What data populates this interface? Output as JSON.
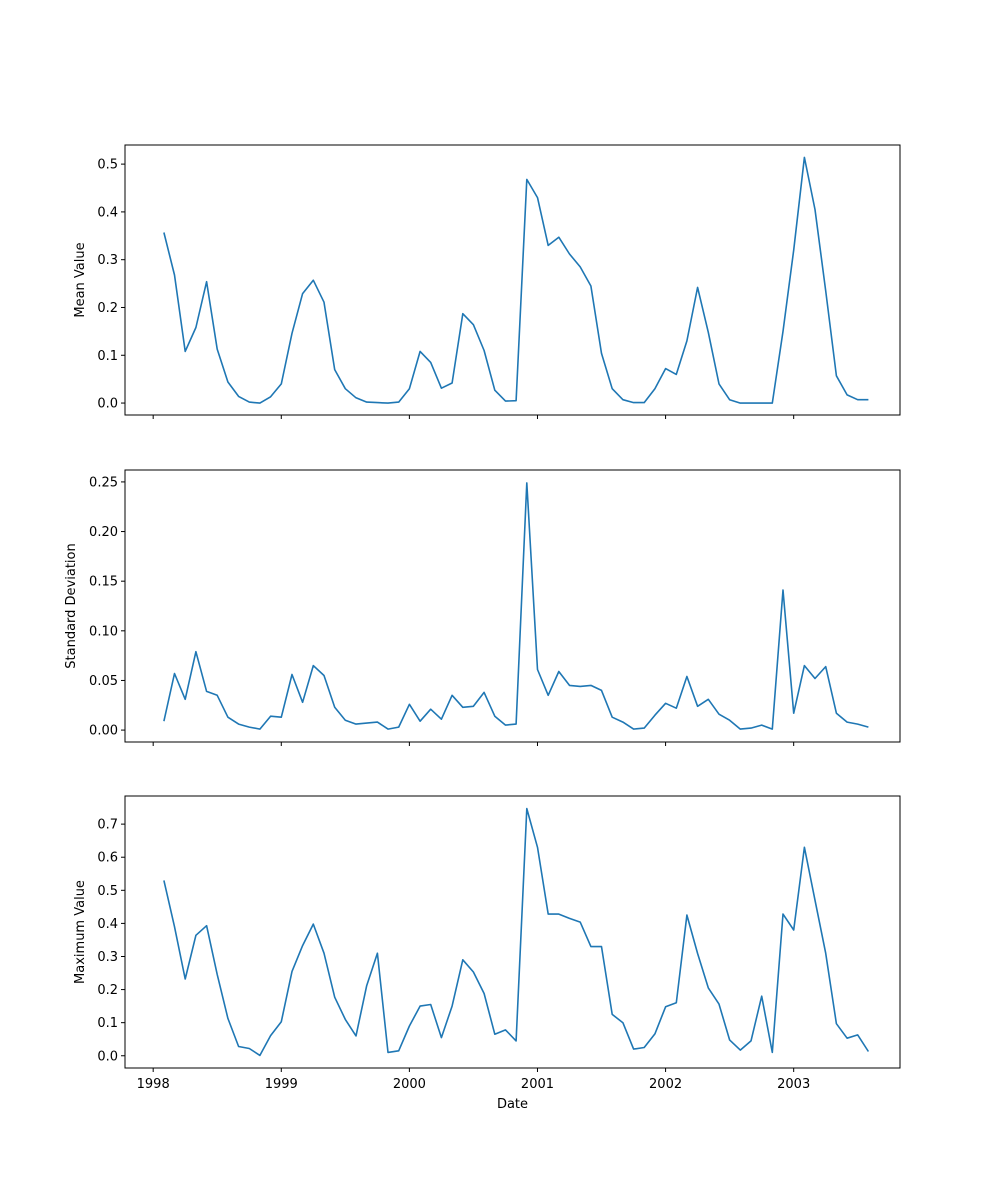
{
  "chart_data": {
    "type": "line",
    "xlabel": "Date",
    "x_ticks": [
      "1998",
      "1999",
      "2000",
      "2001",
      "2002",
      "2003"
    ],
    "line_color": "#1f77b4",
    "dates": [
      "1998-02",
      "1998-03",
      "1998-04",
      "1998-05",
      "1998-06",
      "1998-07",
      "1998-08",
      "1998-09",
      "1998-10",
      "1998-11",
      "1998-12",
      "1999-01",
      "1999-02",
      "1999-03",
      "1999-04",
      "1999-05",
      "1999-06",
      "1999-07",
      "1999-08",
      "1999-09",
      "1999-10",
      "1999-11",
      "1999-12",
      "2000-01",
      "2000-02",
      "2000-03",
      "2000-04",
      "2000-05",
      "2000-06",
      "2000-07",
      "2000-08",
      "2000-09",
      "2000-10",
      "2000-11",
      "2000-12",
      "2001-01",
      "2001-02",
      "2001-03",
      "2001-04",
      "2001-05",
      "2001-06",
      "2001-07",
      "2001-08",
      "2001-09",
      "2001-10",
      "2001-11",
      "2001-12",
      "2002-01",
      "2002-02",
      "2002-03",
      "2002-04",
      "2002-05",
      "2002-06",
      "2002-07",
      "2002-08",
      "2002-09",
      "2002-10",
      "2002-11",
      "2002-12",
      "2003-01",
      "2003-02",
      "2003-03",
      "2003-04",
      "2003-05",
      "2003-06",
      "2003-07",
      "2003-08"
    ],
    "panels": [
      {
        "ylabel": "Mean Value",
        "ylim": [
          -0.025,
          0.54
        ],
        "y_ticks": [
          0.0,
          0.1,
          0.2,
          0.3,
          0.4,
          0.5
        ],
        "y_tick_labels": [
          "0.0",
          "0.1",
          "0.2",
          "0.3",
          "0.4",
          "0.5"
        ],
        "values": [
          0.357,
          0.268,
          0.108,
          0.158,
          0.254,
          0.113,
          0.044,
          0.014,
          0.002,
          0.0,
          0.013,
          0.04,
          0.146,
          0.229,
          0.257,
          0.211,
          0.07,
          0.03,
          0.011,
          0.002,
          0.001,
          0.0,
          0.002,
          0.03,
          0.108,
          0.085,
          0.031,
          0.042,
          0.187,
          0.164,
          0.11,
          0.027,
          0.004,
          0.005,
          0.468,
          0.43,
          0.33,
          0.347,
          0.312,
          0.285,
          0.245,
          0.104,
          0.03,
          0.007,
          0.001,
          0.001,
          0.03,
          0.072,
          0.06,
          0.13,
          0.242,
          0.148,
          0.04,
          0.007,
          0.0,
          0.0,
          0.0,
          0.0,
          0.15,
          0.32,
          0.514,
          0.405,
          0.235,
          0.057,
          0.017,
          0.007,
          0.007
        ]
      },
      {
        "ylabel": "Standard Deviation",
        "ylim": [
          -0.012,
          0.262
        ],
        "y_ticks": [
          0.0,
          0.05,
          0.1,
          0.15,
          0.2,
          0.25
        ],
        "y_tick_labels": [
          "0.00",
          "0.05",
          "0.10",
          "0.15",
          "0.20",
          "0.25"
        ],
        "values": [
          0.009,
          0.057,
          0.031,
          0.079,
          0.039,
          0.035,
          0.013,
          0.006,
          0.003,
          0.001,
          0.014,
          0.013,
          0.056,
          0.028,
          0.065,
          0.055,
          0.023,
          0.01,
          0.006,
          0.007,
          0.008,
          0.001,
          0.003,
          0.026,
          0.009,
          0.021,
          0.011,
          0.035,
          0.023,
          0.024,
          0.038,
          0.014,
          0.005,
          0.006,
          0.249,
          0.061,
          0.035,
          0.059,
          0.045,
          0.044,
          0.045,
          0.04,
          0.013,
          0.008,
          0.001,
          0.002,
          0.015,
          0.027,
          0.022,
          0.054,
          0.024,
          0.031,
          0.016,
          0.01,
          0.001,
          0.002,
          0.005,
          0.001,
          0.141,
          0.017,
          0.065,
          0.052,
          0.064,
          0.017,
          0.008,
          0.006,
          0.003
        ]
      },
      {
        "ylabel": "Maximum Value",
        "ylim": [
          -0.037,
          0.785
        ],
        "y_ticks": [
          0.0,
          0.1,
          0.2,
          0.3,
          0.4,
          0.5,
          0.6,
          0.7
        ],
        "y_tick_labels": [
          "0.0",
          "0.1",
          "0.2",
          "0.3",
          "0.4",
          "0.5",
          "0.6",
          "0.7"
        ],
        "values": [
          0.53,
          0.39,
          0.232,
          0.364,
          0.393,
          0.246,
          0.113,
          0.028,
          0.022,
          0.001,
          0.061,
          0.103,
          0.255,
          0.333,
          0.398,
          0.31,
          0.177,
          0.11,
          0.06,
          0.212,
          0.31,
          0.01,
          0.015,
          0.09,
          0.15,
          0.155,
          0.055,
          0.15,
          0.29,
          0.253,
          0.188,
          0.065,
          0.078,
          0.045,
          0.747,
          0.63,
          0.428,
          0.428,
          0.415,
          0.404,
          0.33,
          0.33,
          0.125,
          0.1,
          0.02,
          0.025,
          0.066,
          0.148,
          0.16,
          0.425,
          0.309,
          0.205,
          0.156,
          0.048,
          0.017,
          0.045,
          0.18,
          0.01,
          0.428,
          0.38,
          0.63,
          0.47,
          0.31,
          0.097,
          0.053,
          0.063,
          0.013
        ]
      }
    ]
  }
}
